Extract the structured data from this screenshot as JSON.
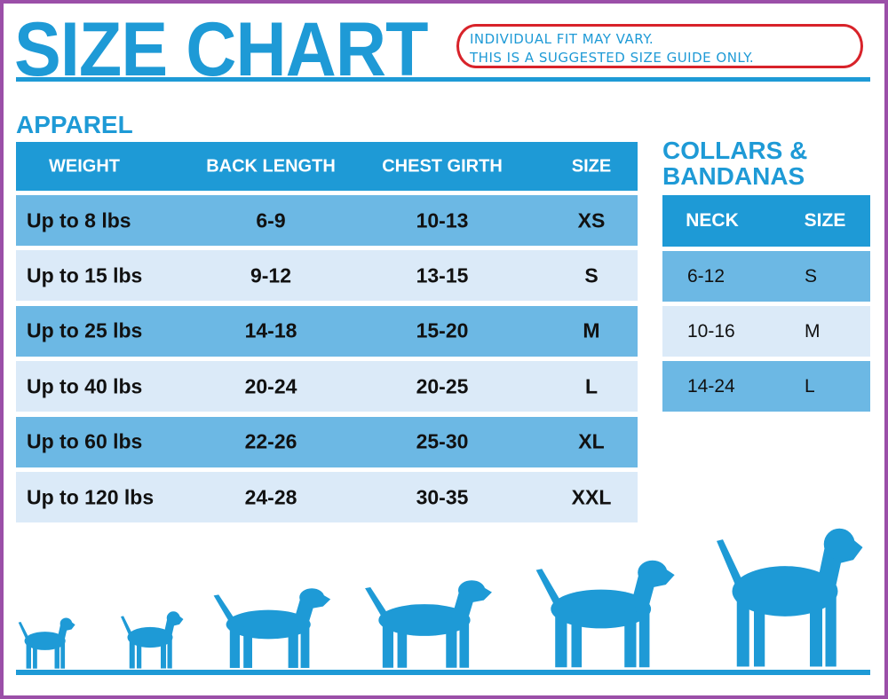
{
  "title": "SIZE CHART",
  "notice": [
    "INDIVIDUAL FIT MAY VARY.",
    "THIS IS A SUGGESTED SIZE GUIDE ONLY."
  ],
  "apparel": {
    "heading": "APPAREL",
    "columns": [
      "WEIGHT",
      "BACK LENGTH",
      "CHEST GIRTH",
      "SIZE"
    ],
    "rows": [
      [
        "Up to 8 lbs",
        "6-9",
        "10-13",
        "XS"
      ],
      [
        "Up to 15 lbs",
        "9-12",
        "13-15",
        "S"
      ],
      [
        "Up to 25 lbs",
        "14-18",
        "15-20",
        "M"
      ],
      [
        "Up to 40 lbs",
        "20-24",
        "20-25",
        "L"
      ],
      [
        "Up to 60 lbs",
        "22-26",
        "25-30",
        "XL"
      ],
      [
        "Up to 120 lbs",
        "24-28",
        "30-35",
        "XXL"
      ]
    ]
  },
  "collars": {
    "heading": [
      "COLLARS &",
      "BANDANAS"
    ],
    "columns": [
      "NECK",
      "SIZE"
    ],
    "rows": [
      [
        "6-12",
        "S"
      ],
      [
        "10-16",
        "M"
      ],
      [
        "14-24",
        "L"
      ]
    ]
  },
  "colors": {
    "accent": "#1e9ad6",
    "row_dark": "#6cb8e4",
    "row_light": "#dbeaf8",
    "frame": "#9b4fa8",
    "notice_border": "#d8232a"
  },
  "illustration": {
    "icons": [
      "dog-silhouette-icon",
      "dog-silhouette-icon",
      "dog-silhouette-icon",
      "dog-silhouette-icon",
      "dog-silhouette-icon",
      "dog-silhouette-icon"
    ]
  }
}
